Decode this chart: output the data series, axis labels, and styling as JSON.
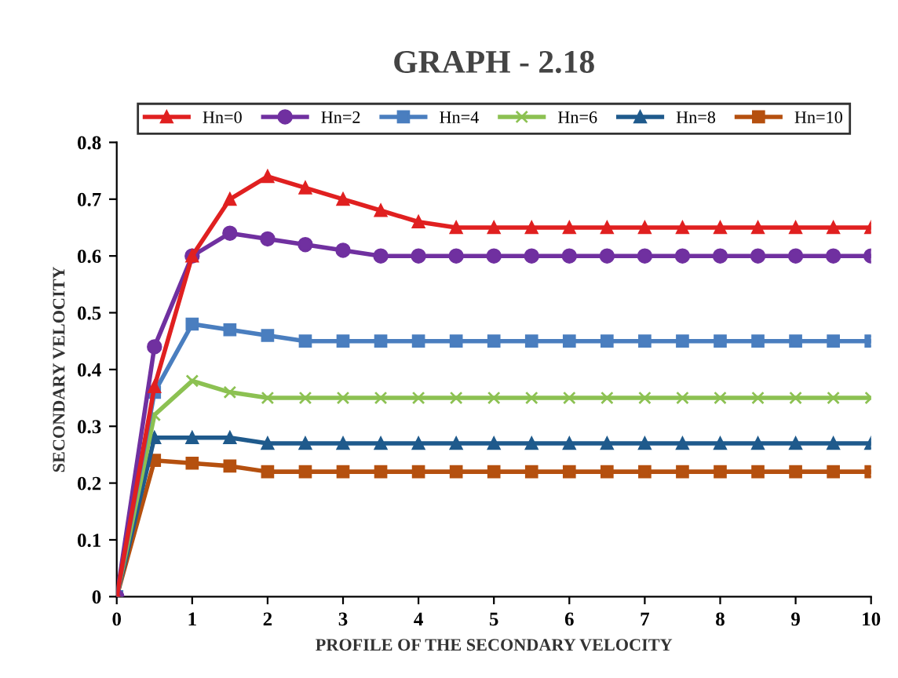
{
  "chart_data": {
    "type": "line",
    "title": "GRAPH - 2.18",
    "xlabel": "PROFILE OF THE SECONDARY VELOCITY",
    "ylabel": "SECONDARY VELOCITY",
    "x": [
      0,
      0.5,
      1,
      1.5,
      2,
      2.5,
      3,
      3.5,
      4,
      4.5,
      5,
      5.5,
      6,
      6.5,
      7,
      7.5,
      8,
      8.5,
      9,
      9.5,
      10
    ],
    "series": [
      {
        "name": "Hn=0",
        "color": "#e02020",
        "marker": "triangle",
        "values": [
          0,
          0.37,
          0.6,
          0.7,
          0.74,
          0.72,
          0.7,
          0.68,
          0.66,
          0.65,
          0.65,
          0.65,
          0.65,
          0.65,
          0.65,
          0.65,
          0.65,
          0.65,
          0.65,
          0.65,
          0.65
        ]
      },
      {
        "name": "Hn=2",
        "color": "#7030a0",
        "marker": "circle",
        "values": [
          0,
          0.44,
          0.6,
          0.64,
          0.63,
          0.62,
          0.61,
          0.6,
          0.6,
          0.6,
          0.6,
          0.6,
          0.6,
          0.6,
          0.6,
          0.6,
          0.6,
          0.6,
          0.6,
          0.6,
          0.6
        ]
      },
      {
        "name": "Hn=4",
        "color": "#4a7ebf",
        "marker": "square",
        "values": [
          0,
          0.36,
          0.48,
          0.47,
          0.46,
          0.45,
          0.45,
          0.45,
          0.45,
          0.45,
          0.45,
          0.45,
          0.45,
          0.45,
          0.45,
          0.45,
          0.45,
          0.45,
          0.45,
          0.45,
          0.45
        ]
      },
      {
        "name": "Hn=6",
        "color": "#8cc152",
        "marker": "cross",
        "values": [
          0,
          0.32,
          0.38,
          0.36,
          0.35,
          0.35,
          0.35,
          0.35,
          0.35,
          0.35,
          0.35,
          0.35,
          0.35,
          0.35,
          0.35,
          0.35,
          0.35,
          0.35,
          0.35,
          0.35,
          0.35
        ]
      },
      {
        "name": "Hn=8",
        "color": "#1f5a8c",
        "marker": "triangle",
        "values": [
          0,
          0.28,
          0.28,
          0.28,
          0.27,
          0.27,
          0.27,
          0.27,
          0.27,
          0.27,
          0.27,
          0.27,
          0.27,
          0.27,
          0.27,
          0.27,
          0.27,
          0.27,
          0.27,
          0.27,
          0.27
        ]
      },
      {
        "name": "Hn=10",
        "color": "#b5500f",
        "marker": "square",
        "values": [
          0,
          0.24,
          0.235,
          0.23,
          0.22,
          0.22,
          0.22,
          0.22,
          0.22,
          0.22,
          0.22,
          0.22,
          0.22,
          0.22,
          0.22,
          0.22,
          0.22,
          0.22,
          0.22,
          0.22,
          0.22
        ]
      }
    ],
    "xlim": [
      0,
      10
    ],
    "xticks": [
      0,
      1,
      2,
      3,
      4,
      5,
      6,
      7,
      8,
      9,
      10
    ],
    "ylim": [
      0,
      0.8
    ],
    "yticks": [
      0,
      0.1,
      0.2,
      0.3,
      0.4,
      0.5,
      0.6,
      0.7,
      0.8
    ],
    "grid": false,
    "legend": "top"
  }
}
